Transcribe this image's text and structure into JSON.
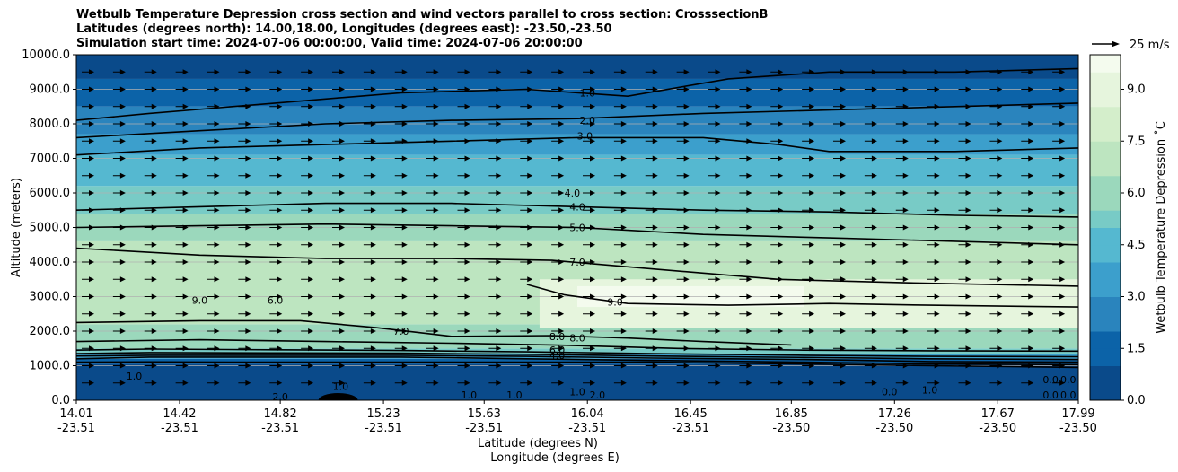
{
  "title_lines": [
    "Wetbulb Temperature Depression cross section and wind vectors parallel to cross section: CrosssectionB",
    "Latitudes (degrees north): 14.00,18.00, Longitudes (degrees east): -23.50,-23.50",
    "Simulation start time: 2024-07-06 00:00:00, Valid time: 2024-07-06 20:00:00"
  ],
  "chart_data": {
    "type": "contour_cross_section",
    "title": "Wetbulb Temperature Depression cross section and wind vectors parallel to cross section: CrosssectionB",
    "ylabel": "Altitude (meters)",
    "xlabel_lines": [
      "Latitude (degrees N)",
      "Longitude (degrees E)"
    ],
    "ylim": [
      0,
      10000
    ],
    "yticks": [
      "0.0",
      "1000.0",
      "2000.0",
      "3000.0",
      "4000.0",
      "5000.0",
      "6000.0",
      "7000.0",
      "8000.0",
      "9000.0",
      "10000.0"
    ],
    "xticks": [
      {
        "lat": "14.01",
        "lon": "-23.51"
      },
      {
        "lat": "14.42",
        "lon": "-23.51"
      },
      {
        "lat": "14.82",
        "lon": "-23.51"
      },
      {
        "lat": "15.23",
        "lon": "-23.51"
      },
      {
        "lat": "15.63",
        "lon": "-23.51"
      },
      {
        "lat": "16.04",
        "lon": "-23.51"
      },
      {
        "lat": "16.45",
        "lon": "-23.51"
      },
      {
        "lat": "16.85",
        "lon": "-23.50"
      },
      {
        "lat": "17.26",
        "lon": "-23.50"
      },
      {
        "lat": "17.67",
        "lon": "-23.50"
      },
      {
        "lat": "17.99",
        "lon": "-23.50"
      }
    ],
    "xlim": [
      14.01,
      17.99
    ],
    "grid": "horizontal",
    "colorbar": {
      "label": "Wetbulb Temperature Depression ˚C",
      "ticks": [
        "0.0",
        "1.5",
        "3.0",
        "4.5",
        "6.0",
        "7.5",
        "9.0"
      ],
      "range": [
        0,
        10
      ],
      "colormap": "GnBu_r",
      "colors": [
        "#0a4a8a",
        "#0c63a8",
        "#2a84bd",
        "#3c9fcc",
        "#55b8d0",
        "#78cbc6",
        "#9bd8bc",
        "#bde5c0",
        "#d4eecb",
        "#e6f5dd",
        "#f4fbee"
      ]
    },
    "quiver_key": {
      "label": "25 m/s",
      "speed": 25
    },
    "wind": {
      "direction": "left-to-right",
      "approx_speed_ms": 10
    },
    "contour_labels": [
      {
        "text": "1.0",
        "lat": 16.04,
        "alt": 8900
      },
      {
        "text": "2.0",
        "lat": 16.04,
        "alt": 8100
      },
      {
        "text": "3.0",
        "lat": 16.03,
        "alt": 7650
      },
      {
        "text": "4.0",
        "lat": 15.98,
        "alt": 6000
      },
      {
        "text": "4.0",
        "lat": 16.0,
        "alt": 5600
      },
      {
        "text": "5.0",
        "lat": 16.0,
        "alt": 5000
      },
      {
        "text": "7.0",
        "lat": 16.0,
        "alt": 4000
      },
      {
        "text": "9.0",
        "lat": 14.5,
        "alt": 2900
      },
      {
        "text": "6.0",
        "lat": 14.8,
        "alt": 2900
      },
      {
        "text": "9.0",
        "lat": 16.15,
        "alt": 2850
      },
      {
        "text": "7.0",
        "lat": 15.3,
        "alt": 2000
      },
      {
        "text": "8.0",
        "lat": 15.92,
        "alt": 1850
      },
      {
        "text": "8.0",
        "lat": 16.0,
        "alt": 1800
      },
      {
        "text": "6.0",
        "lat": 15.92,
        "alt": 1450
      },
      {
        "text": "4.0",
        "lat": 15.92,
        "alt": 1300
      },
      {
        "text": "1.0",
        "lat": 14.24,
        "alt": 700
      },
      {
        "text": "2.0",
        "lat": 14.82,
        "alt": 100
      },
      {
        "text": "1.0",
        "lat": 15.06,
        "alt": 400
      },
      {
        "text": "1.0",
        "lat": 15.57,
        "alt": 150
      },
      {
        "text": "1.0",
        "lat": 15.75,
        "alt": 150
      },
      {
        "text": "1.0",
        "lat": 16.0,
        "alt": 250
      },
      {
        "text": "2.0",
        "lat": 16.08,
        "alt": 150
      },
      {
        "text": "0.0",
        "lat": 17.24,
        "alt": 250
      },
      {
        "text": "1.0",
        "lat": 17.4,
        "alt": 300
      },
      {
        "text": "0.0",
        "lat": 17.88,
        "alt": 600
      },
      {
        "text": "0.0",
        "lat": 17.95,
        "alt": 600
      },
      {
        "text": "0.0",
        "lat": 17.88,
        "alt": 150
      },
      {
        "text": "0.0",
        "lat": 17.95,
        "alt": 150
      }
    ],
    "contour_lines": [
      {
        "level": 0.5,
        "points": [
          [
            14.01,
            1100
          ],
          [
            14.3,
            1110
          ],
          [
            14.8,
            1100
          ],
          [
            15.3,
            1100
          ],
          [
            15.8,
            1100
          ],
          [
            16.3,
            1100
          ],
          [
            16.9,
            1050
          ],
          [
            17.4,
            1000
          ],
          [
            17.99,
            950
          ]
        ]
      },
      {
        "level": 1.0,
        "points": [
          [
            14.01,
            1200
          ],
          [
            14.3,
            1250
          ],
          [
            14.8,
            1250
          ],
          [
            15.3,
            1250
          ],
          [
            15.8,
            1200
          ],
          [
            16.3,
            1150
          ],
          [
            16.9,
            1100
          ],
          [
            17.4,
            1050
          ],
          [
            17.99,
            1030
          ]
        ]
      },
      {
        "level": 2.0,
        "points": [
          [
            14.01,
            1280
          ],
          [
            14.3,
            1300
          ],
          [
            14.8,
            1300
          ],
          [
            15.3,
            1300
          ],
          [
            15.8,
            1270
          ],
          [
            16.3,
            1220
          ],
          [
            16.9,
            1180
          ],
          [
            17.4,
            1120
          ],
          [
            17.99,
            1100
          ]
        ]
      },
      {
        "level": 3.0,
        "points": [
          [
            14.01,
            1350
          ],
          [
            14.3,
            1380
          ],
          [
            14.8,
            1370
          ],
          [
            15.3,
            1360
          ],
          [
            15.8,
            1330
          ],
          [
            16.3,
            1280
          ],
          [
            16.9,
            1240
          ],
          [
            17.4,
            1200
          ],
          [
            17.99,
            1180
          ]
        ]
      },
      {
        "level": 4.0,
        "points": [
          [
            14.01,
            1450
          ],
          [
            14.3,
            1480
          ],
          [
            14.8,
            1460
          ],
          [
            15.3,
            1440
          ],
          [
            15.8,
            1400
          ],
          [
            16.3,
            1350
          ],
          [
            16.9,
            1300
          ],
          [
            17.4,
            1270
          ],
          [
            17.99,
            1260
          ]
        ]
      },
      {
        "level": 6.0,
        "points": [
          [
            14.01,
            1700
          ],
          [
            14.5,
            1750
          ],
          [
            15.0,
            1700
          ],
          [
            15.5,
            1650
          ],
          [
            15.9,
            1600
          ],
          [
            16.4,
            1500
          ],
          [
            16.9,
            1450
          ],
          [
            17.4,
            1430
          ],
          [
            17.99,
            1420
          ]
        ]
      },
      {
        "level": 8.0,
        "points": [
          [
            14.01,
            2250
          ],
          [
            14.5,
            2300
          ],
          [
            14.9,
            2300
          ],
          [
            15.2,
            2100
          ],
          [
            15.5,
            1850
          ],
          [
            15.9,
            1870
          ],
          [
            16.2,
            1800
          ],
          [
            16.5,
            1700
          ],
          [
            16.85,
            1600
          ]
        ]
      },
      {
        "level": 9.0,
        "points": [
          [
            15.8,
            3350
          ],
          [
            15.95,
            3050
          ],
          [
            16.2,
            2800
          ],
          [
            16.6,
            2750
          ],
          [
            17.0,
            2800
          ],
          [
            17.4,
            2750
          ],
          [
            17.99,
            2700
          ]
        ]
      },
      {
        "level": 7.0,
        "points": [
          [
            14.01,
            4400
          ],
          [
            14.5,
            4200
          ],
          [
            15.0,
            4100
          ],
          [
            15.5,
            4100
          ],
          [
            15.9,
            4050
          ],
          [
            16.3,
            3800
          ],
          [
            16.8,
            3500
          ],
          [
            17.3,
            3400
          ],
          [
            17.99,
            3300
          ]
        ]
      },
      {
        "level": 5.0,
        "points": [
          [
            14.01,
            5000
          ],
          [
            14.5,
            5050
          ],
          [
            15.0,
            5100
          ],
          [
            15.5,
            5050
          ],
          [
            16.0,
            5000
          ],
          [
            16.5,
            4800
          ],
          [
            17.0,
            4700
          ],
          [
            17.5,
            4600
          ],
          [
            17.99,
            4500
          ]
        ]
      },
      {
        "level": 4.0,
        "points": [
          [
            14.01,
            5500
          ],
          [
            14.5,
            5600
          ],
          [
            15.0,
            5700
          ],
          [
            15.5,
            5700
          ],
          [
            16.0,
            5600
          ],
          [
            16.5,
            5500
          ],
          [
            17.0,
            5450
          ],
          [
            17.5,
            5350
          ],
          [
            17.99,
            5300
          ]
        ]
      },
      {
        "level": 3.0,
        "points": [
          [
            14.01,
            7100
          ],
          [
            14.5,
            7300
          ],
          [
            15.0,
            7400
          ],
          [
            15.5,
            7500
          ],
          [
            16.0,
            7600
          ],
          [
            16.5,
            7600
          ],
          [
            16.8,
            7400
          ],
          [
            17.0,
            7200
          ],
          [
            17.5,
            7200
          ],
          [
            17.99,
            7300
          ]
        ]
      },
      {
        "level": 2.0,
        "points": [
          [
            14.01,
            7600
          ],
          [
            14.5,
            7800
          ],
          [
            15.0,
            8000
          ],
          [
            15.5,
            8100
          ],
          [
            16.0,
            8150
          ],
          [
            16.5,
            8300
          ],
          [
            17.0,
            8400
          ],
          [
            17.5,
            8500
          ],
          [
            17.99,
            8600
          ]
        ]
      },
      {
        "level": 1.0,
        "points": [
          [
            14.01,
            8100
          ],
          [
            14.3,
            8300
          ],
          [
            14.8,
            8600
          ],
          [
            15.3,
            8900
          ],
          [
            15.8,
            9000
          ],
          [
            16.2,
            8800
          ],
          [
            16.6,
            9300
          ],
          [
            17.0,
            9500
          ],
          [
            17.5,
            9500
          ],
          [
            17.99,
            9600
          ]
        ]
      }
    ]
  }
}
